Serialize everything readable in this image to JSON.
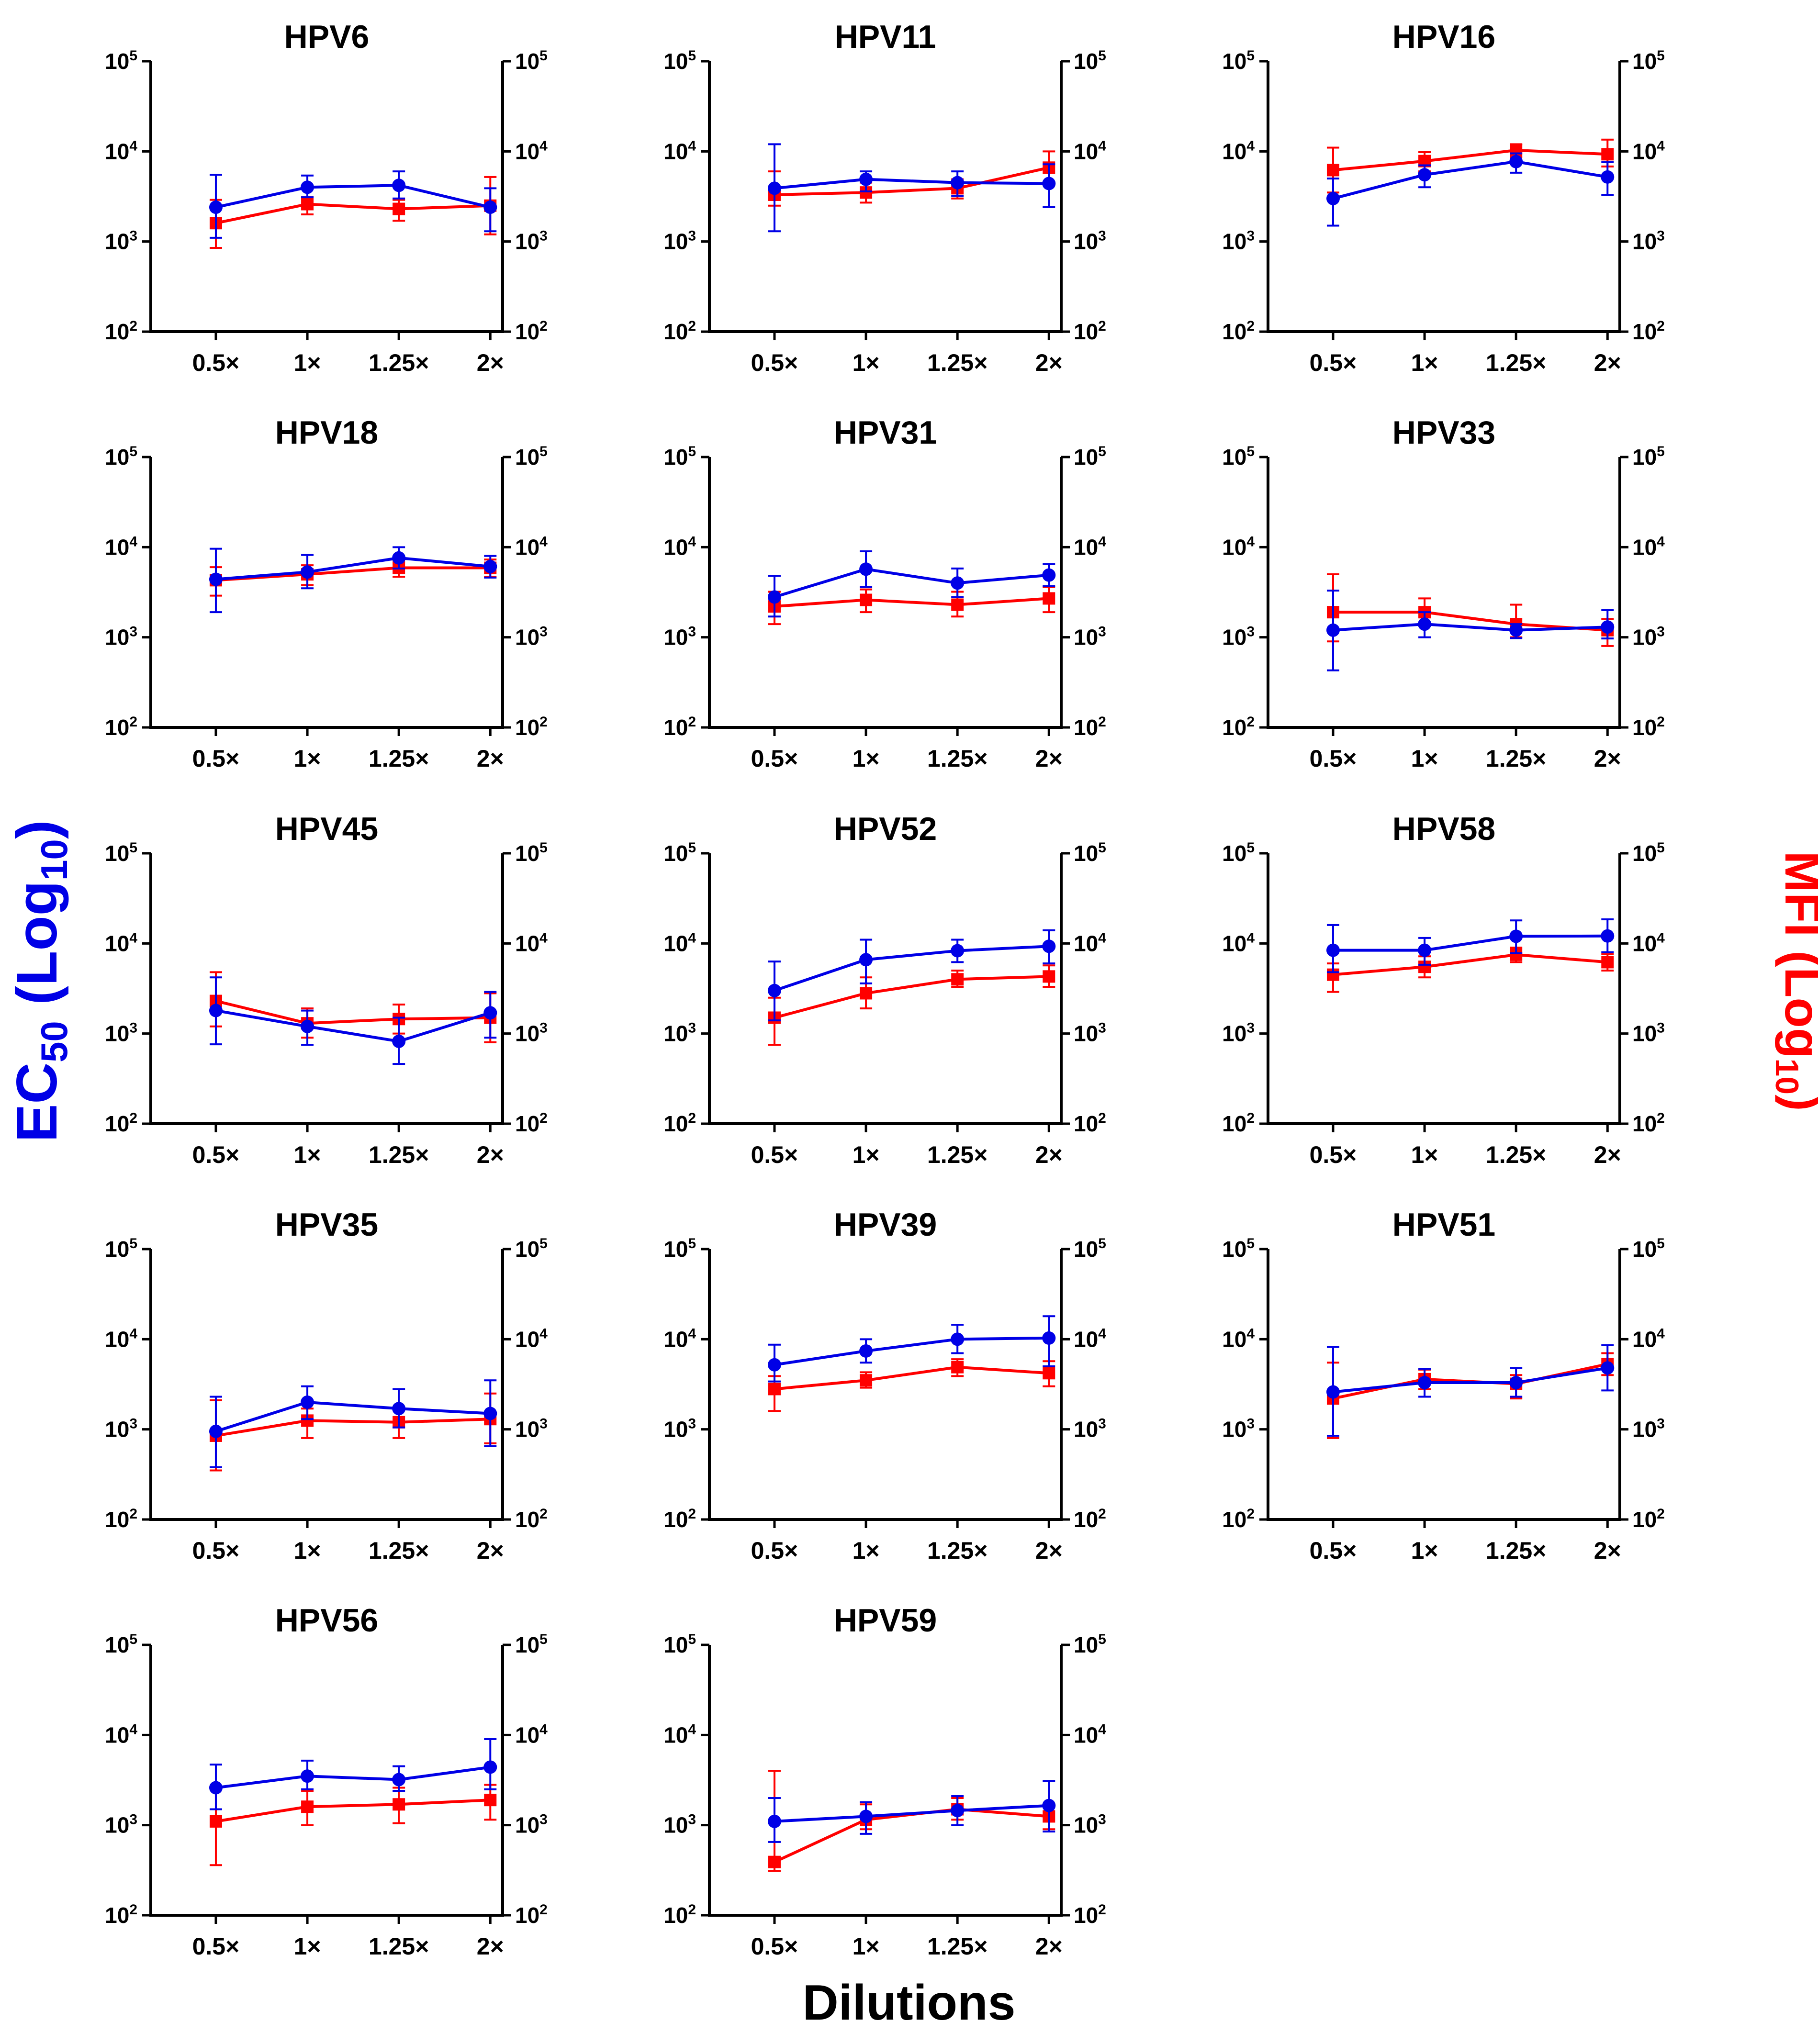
{
  "figure": {
    "left_axis_title": {
      "main": "EC",
      "sub": "50",
      "rest_open": " (Log",
      "rest_sub": "10",
      "rest_close": ")"
    },
    "right_axis_title": {
      "main": "MFI (Log",
      "sub": "10",
      "close": ")"
    },
    "x_axis_title": "Dilutions",
    "colors": {
      "ec50": "#0000e6",
      "mfi": "#ff0000",
      "axis": "#000000"
    }
  },
  "chart_data": [
    {
      "type": "line",
      "title": "HPV6",
      "categories": [
        "0.5×",
        "1×",
        "1.25×",
        "2×"
      ],
      "y_scale": "log10",
      "ylim": [
        100,
        100000
      ],
      "y2lim": [
        100,
        100000
      ],
      "yticks": [
        "10",
        "10",
        "10",
        "10"
      ],
      "ytick_exponents": [
        "2",
        "3",
        "4",
        "5"
      ],
      "series": [
        {
          "name": "EC50",
          "axis": "left",
          "values": [
            2400,
            4000,
            4200,
            2400
          ],
          "err_low": [
            1100,
            3100,
            3000,
            1300
          ],
          "err_high": [
            5500,
            5400,
            6000,
            3900
          ]
        },
        {
          "name": "MFI",
          "axis": "right",
          "values": [
            1600,
            2600,
            2300,
            2500
          ],
          "err_low": [
            850,
            2000,
            1700,
            1200
          ],
          "err_high": [
            2900,
            3100,
            2900,
            5200
          ]
        }
      ]
    },
    {
      "type": "line",
      "title": "HPV11",
      "categories": [
        "0.5×",
        "1×",
        "1.25×",
        "2×"
      ],
      "y_scale": "log10",
      "ylim": [
        100,
        100000
      ],
      "y2lim": [
        100,
        100000
      ],
      "yticks": [
        "10",
        "10",
        "10",
        "10"
      ],
      "ytick_exponents": [
        "2",
        "3",
        "4",
        "5"
      ],
      "series": [
        {
          "name": "EC50",
          "axis": "left",
          "values": [
            3900,
            4900,
            4500,
            4400
          ],
          "err_low": [
            1300,
            3600,
            3200,
            2400
          ],
          "err_high": [
            12000,
            6000,
            6000,
            7200
          ]
        },
        {
          "name": "MFI",
          "axis": "right",
          "values": [
            3300,
            3500,
            3900,
            6600
          ],
          "err_low": [
            2500,
            2700,
            3000,
            4400
          ],
          "err_high": [
            6000,
            4500,
            4900,
            10000
          ]
        }
      ]
    },
    {
      "type": "line",
      "title": "HPV16",
      "categories": [
        "0.5×",
        "1×",
        "1.25×",
        "2×"
      ],
      "y_scale": "log10",
      "ylim": [
        100,
        100000
      ],
      "y2lim": [
        100,
        100000
      ],
      "yticks": [
        "10",
        "10",
        "10",
        "10"
      ],
      "ytick_exponents": [
        "2",
        "3",
        "4",
        "5"
      ],
      "series": [
        {
          "name": "EC50",
          "axis": "left",
          "values": [
            3000,
            5500,
            7700,
            5200
          ],
          "err_low": [
            1500,
            4000,
            5800,
            3300
          ],
          "err_high": [
            5000,
            7000,
            9500,
            7600
          ]
        },
        {
          "name": "MFI",
          "axis": "right",
          "values": [
            6200,
            7800,
            10300,
            9300
          ],
          "err_low": [
            3500,
            6000,
            8600,
            6800
          ],
          "err_high": [
            11000,
            9800,
            12000,
            13500
          ]
        }
      ]
    },
    {
      "type": "line",
      "title": "HPV18",
      "categories": [
        "0.5×",
        "1×",
        "1.25×",
        "2×"
      ],
      "y_scale": "log10",
      "ylim": [
        100,
        100000
      ],
      "y2lim": [
        100,
        100000
      ],
      "yticks": [
        "10",
        "10",
        "10",
        "10"
      ],
      "ytick_exponents": [
        "2",
        "3",
        "4",
        "5"
      ],
      "series": [
        {
          "name": "EC50",
          "axis": "left",
          "values": [
            4400,
            5300,
            7600,
            6100
          ],
          "err_low": [
            1900,
            3500,
            5800,
            4600
          ],
          "err_high": [
            9600,
            8200,
            10000,
            8000
          ]
        },
        {
          "name": "MFI",
          "axis": "right",
          "values": [
            4300,
            5000,
            5900,
            5900
          ],
          "err_low": [
            2900,
            3800,
            4700,
            4700
          ],
          "err_high": [
            6000,
            6300,
            7100,
            7300
          ]
        }
      ]
    },
    {
      "type": "line",
      "title": "HPV31",
      "categories": [
        "0.5×",
        "1×",
        "1.25×",
        "2×"
      ],
      "y_scale": "log10",
      "ylim": [
        100,
        100000
      ],
      "y2lim": [
        100,
        100000
      ],
      "yticks": [
        "10",
        "10",
        "10",
        "10"
      ],
      "ytick_exponents": [
        "2",
        "3",
        "4",
        "5"
      ],
      "series": [
        {
          "name": "EC50",
          "axis": "left",
          "values": [
            2800,
            5700,
            4000,
            4900
          ],
          "err_low": [
            1700,
            3600,
            2800,
            3700
          ],
          "err_high": [
            4800,
            9000,
            5800,
            6500
          ]
        },
        {
          "name": "MFI",
          "axis": "right",
          "values": [
            2200,
            2600,
            2300,
            2700
          ],
          "err_low": [
            1400,
            1900,
            1700,
            1900
          ],
          "err_high": [
            3200,
            3400,
            3200,
            3600
          ]
        }
      ]
    },
    {
      "type": "line",
      "title": "HPV33",
      "categories": [
        "0.5×",
        "1×",
        "1.25×",
        "2×"
      ],
      "y_scale": "log10",
      "ylim": [
        100,
        100000
      ],
      "y2lim": [
        100,
        100000
      ],
      "yticks": [
        "10",
        "10",
        "10",
        "10"
      ],
      "ytick_exponents": [
        "2",
        "3",
        "4",
        "5"
      ],
      "series": [
        {
          "name": "EC50",
          "axis": "left",
          "values": [
            1200,
            1400,
            1200,
            1300
          ],
          "err_low": [
            430,
            1000,
            980,
            970
          ],
          "err_high": [
            3300,
            1900,
            1400,
            2000
          ]
        },
        {
          "name": "MFI",
          "axis": "right",
          "values": [
            1900,
            1900,
            1400,
            1200
          ],
          "err_low": [
            900,
            1400,
            1000,
            800
          ],
          "err_high": [
            5000,
            2700,
            2300,
            1600
          ]
        }
      ]
    },
    {
      "type": "line",
      "title": "HPV45",
      "categories": [
        "0.5×",
        "1×",
        "1.25×",
        "2×"
      ],
      "y_scale": "log10",
      "ylim": [
        100,
        100000
      ],
      "y2lim": [
        100,
        100000
      ],
      "yticks": [
        "10",
        "10",
        "10",
        "10"
      ],
      "ytick_exponents": [
        "2",
        "3",
        "4",
        "5"
      ],
      "series": [
        {
          "name": "EC50",
          "axis": "left",
          "values": [
            1800,
            1200,
            820,
            1700
          ],
          "err_low": [
            760,
            750,
            460,
            900
          ],
          "err_high": [
            4200,
            1800,
            1500,
            2900
          ]
        },
        {
          "name": "MFI",
          "axis": "right",
          "values": [
            2300,
            1300,
            1450,
            1500
          ],
          "err_low": [
            1200,
            900,
            1000,
            800
          ],
          "err_high": [
            4800,
            1900,
            2100,
            2800
          ]
        }
      ]
    },
    {
      "type": "line",
      "title": "HPV52",
      "categories": [
        "0.5×",
        "1×",
        "1.25×",
        "2×"
      ],
      "y_scale": "log10",
      "ylim": [
        100,
        100000
      ],
      "y2lim": [
        100,
        100000
      ],
      "yticks": [
        "10",
        "10",
        "10",
        "10"
      ],
      "ytick_exponents": [
        "2",
        "3",
        "4",
        "5"
      ],
      "series": [
        {
          "name": "EC50",
          "axis": "left",
          "values": [
            3000,
            6600,
            8300,
            9300
          ],
          "err_low": [
            1400,
            3600,
            6200,
            6000
          ],
          "err_high": [
            6300,
            11000,
            11000,
            14000
          ]
        },
        {
          "name": "MFI",
          "axis": "right",
          "values": [
            1500,
            2800,
            4000,
            4300
          ],
          "err_low": [
            750,
            1900,
            3300,
            3300
          ],
          "err_high": [
            2500,
            4200,
            5000,
            5700
          ]
        }
      ]
    },
    {
      "type": "line",
      "title": "HPV58",
      "categories": [
        "0.5×",
        "1×",
        "1.25×",
        "2×"
      ],
      "y_scale": "log10",
      "ylim": [
        100,
        100000
      ],
      "y2lim": [
        100,
        100000
      ],
      "yticks": [
        "10",
        "10",
        "10",
        "10"
      ],
      "ytick_exponents": [
        "2",
        "3",
        "4",
        "5"
      ],
      "series": [
        {
          "name": "EC50",
          "axis": "left",
          "values": [
            8400,
            8400,
            12000,
            12100
          ],
          "err_low": [
            4800,
            5800,
            7800,
            8000
          ],
          "err_high": [
            16000,
            11500,
            18000,
            18500
          ]
        },
        {
          "name": "MFI",
          "axis": "right",
          "values": [
            4500,
            5500,
            7500,
            6200
          ],
          "err_low": [
            2900,
            4200,
            6200,
            5000
          ],
          "err_high": [
            6000,
            7200,
            9000,
            7600
          ]
        }
      ]
    },
    {
      "type": "line",
      "title": "HPV35",
      "categories": [
        "0.5×",
        "1×",
        "1.25×",
        "2×"
      ],
      "y_scale": "log10",
      "ylim": [
        100,
        100000
      ],
      "y2lim": [
        100,
        100000
      ],
      "yticks": [
        "10",
        "10",
        "10",
        "10"
      ],
      "ytick_exponents": [
        "2",
        "3",
        "4",
        "5"
      ],
      "series": [
        {
          "name": "EC50",
          "axis": "left",
          "values": [
            950,
            2000,
            1700,
            1500
          ],
          "err_low": [
            380,
            1300,
            1050,
            650
          ],
          "err_high": [
            2300,
            3000,
            2800,
            3500
          ]
        },
        {
          "name": "MFI",
          "axis": "right",
          "values": [
            850,
            1250,
            1200,
            1300
          ],
          "err_low": [
            350,
            800,
            800,
            700
          ],
          "err_high": [
            2100,
            1700,
            1650,
            2500
          ]
        }
      ]
    },
    {
      "type": "line",
      "title": "HPV39",
      "categories": [
        "0.5×",
        "1×",
        "1.25×",
        "2×"
      ],
      "y_scale": "log10",
      "ylim": [
        100,
        100000
      ],
      "y2lim": [
        100,
        100000
      ],
      "yticks": [
        "10",
        "10",
        "10",
        "10"
      ],
      "ytick_exponents": [
        "2",
        "3",
        "4",
        "5"
      ],
      "series": [
        {
          "name": "EC50",
          "axis": "left",
          "values": [
            5200,
            7400,
            10000,
            10300
          ],
          "err_low": [
            3400,
            5500,
            7000,
            5000
          ],
          "err_high": [
            8700,
            10000,
            14500,
            18000
          ]
        },
        {
          "name": "MFI",
          "axis": "right",
          "values": [
            2800,
            3500,
            4900,
            4200
          ],
          "err_low": [
            1600,
            2900,
            3900,
            3000
          ],
          "err_high": [
            3900,
            4300,
            6000,
            5700
          ]
        }
      ]
    },
    {
      "type": "line",
      "title": "HPV51",
      "categories": [
        "0.5×",
        "1×",
        "1.25×",
        "2×"
      ],
      "y_scale": "log10",
      "ylim": [
        100,
        100000
      ],
      "y2lim": [
        100,
        100000
      ],
      "yticks": [
        "10",
        "10",
        "10",
        "10"
      ],
      "ytick_exponents": [
        "2",
        "3",
        "4",
        "5"
      ],
      "series": [
        {
          "name": "EC50",
          "axis": "left",
          "values": [
            2600,
            3300,
            3300,
            4800
          ],
          "err_low": [
            850,
            2300,
            2300,
            2700
          ],
          "err_high": [
            8200,
            4700,
            4800,
            8600
          ]
        },
        {
          "name": "MFI",
          "axis": "right",
          "values": [
            2200,
            3600,
            3200,
            5300
          ],
          "err_low": [
            800,
            2800,
            2200,
            4000
          ],
          "err_high": [
            5500,
            4600,
            4000,
            7000
          ]
        }
      ]
    },
    {
      "type": "line",
      "title": "HPV56",
      "categories": [
        "0.5×",
        "1×",
        "1.25×",
        "2×"
      ],
      "y_scale": "log10",
      "ylim": [
        100,
        100000
      ],
      "y2lim": [
        100,
        100000
      ],
      "yticks": [
        "10",
        "10",
        "10",
        "10"
      ],
      "ytick_exponents": [
        "2",
        "3",
        "4",
        "5"
      ],
      "series": [
        {
          "name": "EC50",
          "axis": "left",
          "values": [
            2600,
            3500,
            3200,
            4400
          ],
          "err_low": [
            1500,
            2500,
            2400,
            2500
          ],
          "err_high": [
            4700,
            5200,
            4500,
            9000
          ]
        },
        {
          "name": "MFI",
          "axis": "right",
          "values": [
            1100,
            1600,
            1700,
            1900
          ],
          "err_low": [
            360,
            1000,
            1050,
            1150
          ],
          "err_high": [
            2500,
            2400,
            2600,
            2800
          ]
        }
      ]
    },
    {
      "type": "line",
      "title": "HPV59",
      "categories": [
        "0.5×",
        "1×",
        "1.25×",
        "2×"
      ],
      "y_scale": "log10",
      "ylim": [
        100,
        100000
      ],
      "y2lim": [
        100,
        100000
      ],
      "yticks": [
        "10",
        "10",
        "10",
        "10"
      ],
      "ytick_exponents": [
        "2",
        "3",
        "4",
        "5"
      ],
      "series": [
        {
          "name": "EC50",
          "axis": "left",
          "values": [
            1100,
            1250,
            1450,
            1650
          ],
          "err_low": [
            650,
            800,
            1000,
            850
          ],
          "err_high": [
            2000,
            1800,
            2100,
            3100
          ]
        },
        {
          "name": "MFI",
          "axis": "right",
          "values": [
            390,
            1150,
            1500,
            1250
          ],
          "err_low": [
            310,
            900,
            1150,
            900
          ],
          "err_high": [
            4000,
            1700,
            2000,
            1700
          ]
        }
      ]
    }
  ]
}
